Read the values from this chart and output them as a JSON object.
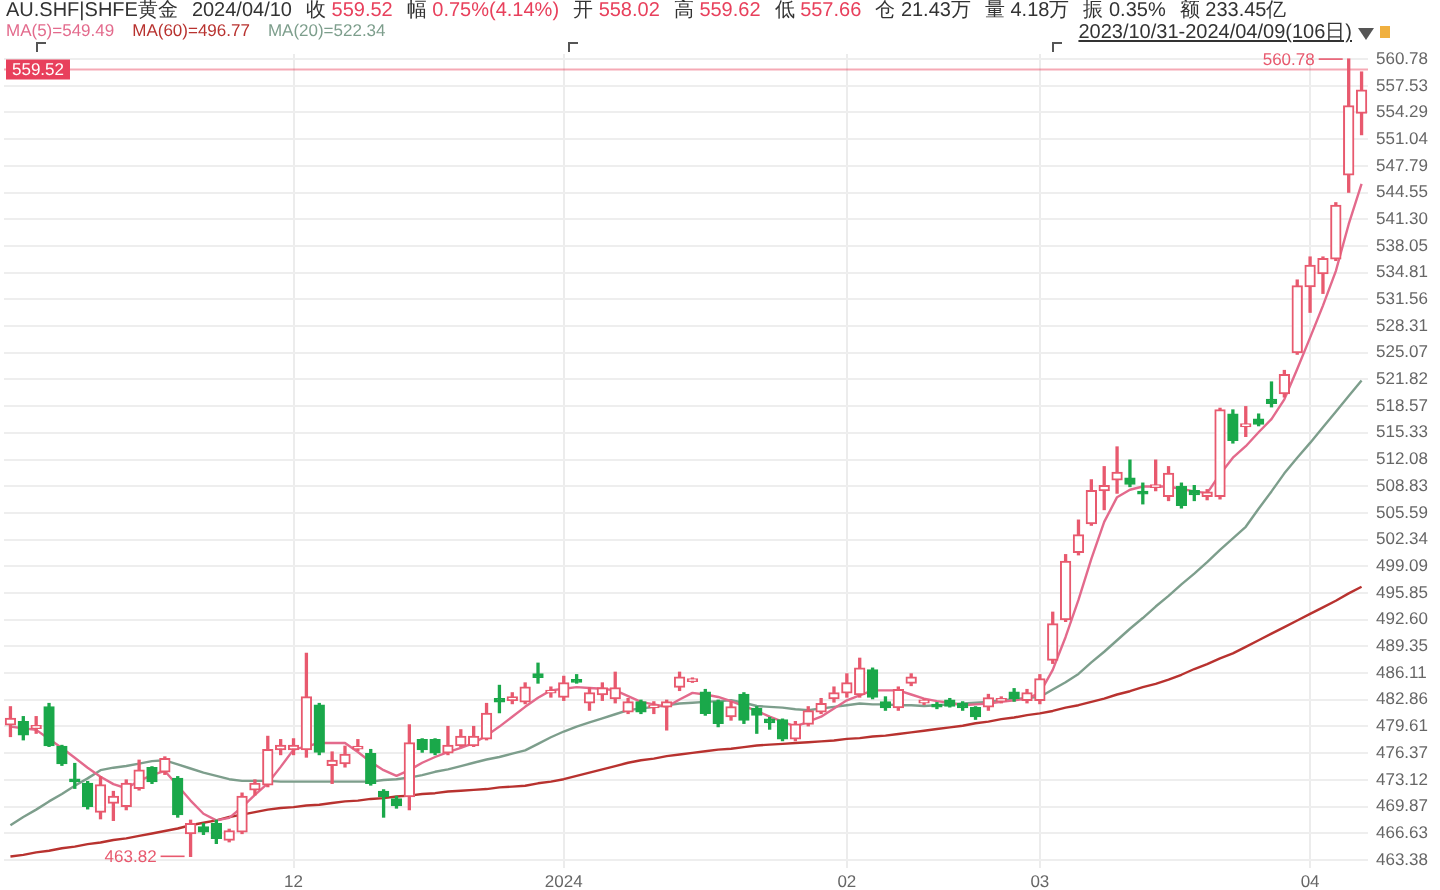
{
  "chart_data": {
    "type": "candlestick",
    "title": "AU.SHF|SHFE黄金",
    "subtitle": "2023/10/31-2024/04/09(106日)",
    "categories": [
      null,
      null,
      null,
      null,
      null,
      null,
      null,
      null,
      null,
      null,
      null,
      null,
      null,
      null,
      null,
      null,
      null,
      null,
      null,
      null,
      null,
      null,
      "12",
      null,
      null,
      null,
      null,
      null,
      null,
      null,
      null,
      null,
      null,
      null,
      null,
      null,
      null,
      null,
      null,
      null,
      null,
      null,
      null,
      "2024",
      null,
      null,
      null,
      null,
      null,
      null,
      null,
      null,
      null,
      null,
      null,
      null,
      null,
      null,
      null,
      null,
      null,
      null,
      null,
      null,
      null,
      "02",
      null,
      null,
      null,
      null,
      null,
      null,
      null,
      null,
      null,
      null,
      null,
      null,
      null,
      null,
      "03",
      null,
      null,
      null,
      null,
      null,
      null,
      null,
      null,
      null,
      null,
      null,
      null,
      null,
      null,
      null,
      null,
      null,
      null,
      null,
      null,
      "04",
      null,
      null,
      null,
      null
    ],
    "ohlc": [
      [
        479.8,
        482.0,
        478.4,
        480.6
      ],
      [
        480.2,
        480.8,
        478.0,
        478.6
      ],
      [
        479.4,
        480.8,
        478.8,
        479.7
      ],
      [
        482.0,
        482.4,
        477.2,
        477.3
      ],
      [
        477.2,
        477.3,
        474.9,
        475.1
      ],
      [
        473.2,
        475.1,
        472.1,
        472.9
      ],
      [
        472.7,
        472.9,
        469.6,
        469.9
      ],
      [
        469.2,
        473.5,
        468.4,
        472.5
      ],
      [
        470.3,
        471.7,
        468.2,
        471.1
      ],
      [
        469.9,
        473.1,
        469.5,
        472.7
      ],
      [
        472.1,
        475.5,
        471.9,
        474.3
      ],
      [
        474.6,
        474.7,
        472.7,
        472.9
      ],
      [
        474.1,
        475.9,
        473.8,
        475.7
      ],
      [
        473.3,
        473.5,
        468.6,
        468.9
      ],
      [
        466.6,
        468.2,
        463.82,
        467.8
      ],
      [
        467.4,
        467.8,
        466.5,
        466.8
      ],
      [
        467.8,
        468.2,
        465.4,
        466.0
      ],
      [
        465.8,
        467.1,
        465.6,
        466.9
      ],
      [
        466.8,
        471.5,
        466.6,
        471.1
      ],
      [
        471.9,
        473.1,
        471.3,
        472.7
      ],
      [
        472.5,
        478.4,
        472.3,
        476.8
      ],
      [
        476.8,
        478.0,
        476.2,
        477.3
      ],
      [
        476.8,
        478.1,
        476.2,
        477.3
      ],
      [
        476.8,
        488.5,
        475.9,
        483.2
      ],
      [
        482.2,
        482.4,
        476.2,
        476.5
      ],
      [
        474.9,
        476.5,
        472.7,
        475.5
      ],
      [
        475.1,
        477.2,
        474.7,
        476.2
      ],
      [
        476.9,
        478.0,
        476.7,
        477.2
      ],
      [
        476.3,
        476.8,
        472.5,
        472.7
      ],
      [
        471.7,
        471.9,
        468.6,
        471.1
      ],
      [
        470.8,
        471.1,
        469.7,
        470.0
      ],
      [
        471.1,
        479.8,
        469.5,
        477.6
      ],
      [
        478.0,
        478.1,
        476.5,
        476.8
      ],
      [
        478.0,
        478.1,
        476.2,
        476.4
      ],
      [
        476.4,
        479.6,
        476.2,
        477.3
      ],
      [
        477.3,
        479.2,
        477.2,
        478.4
      ],
      [
        477.3,
        479.6,
        477.2,
        478.4
      ],
      [
        478.1,
        482.4,
        478.0,
        481.2
      ],
      [
        483.0,
        484.6,
        481.3,
        482.6
      ],
      [
        482.8,
        483.7,
        482.4,
        483.2
      ],
      [
        482.6,
        484.9,
        482.4,
        484.4
      ],
      [
        486.0,
        487.3,
        484.9,
        485.6
      ],
      [
        483.7,
        484.4,
        483.2,
        484.0
      ],
      [
        483.2,
        485.7,
        482.8,
        484.9
      ],
      [
        485.3,
        485.9,
        484.9,
        485.0
      ],
      [
        482.5,
        484.3,
        481.6,
        483.7
      ],
      [
        483.5,
        484.9,
        482.8,
        484.3
      ],
      [
        483.0,
        486.2,
        482.5,
        484.3
      ],
      [
        481.4,
        483.0,
        481.2,
        482.6
      ],
      [
        482.6,
        482.8,
        481.2,
        481.4
      ],
      [
        481.9,
        482.6,
        481.2,
        482.2
      ],
      [
        482.0,
        482.8,
        479.2,
        482.6
      ],
      [
        484.4,
        486.2,
        484.0,
        485.6
      ],
      [
        485.1,
        485.5,
        485.0,
        485.4
      ],
      [
        483.8,
        484.1,
        481.0,
        481.2
      ],
      [
        482.6,
        482.8,
        479.6,
        480.0
      ],
      [
        480.8,
        482.6,
        480.4,
        482.0
      ],
      [
        483.5,
        483.7,
        480.0,
        480.4
      ],
      [
        481.8,
        482.0,
        478.8,
        481.0
      ],
      [
        480.5,
        480.7,
        479.3,
        480.1
      ],
      [
        480.4,
        480.5,
        477.9,
        478.1
      ],
      [
        478.1,
        480.2,
        477.9,
        479.9
      ],
      [
        479.9,
        482.0,
        479.7,
        481.5
      ],
      [
        481.4,
        483.0,
        481.2,
        482.4
      ],
      [
        483.0,
        484.4,
        482.6,
        483.7
      ],
      [
        483.7,
        486.0,
        483.2,
        484.9
      ],
      [
        483.5,
        487.9,
        483.2,
        486.7
      ],
      [
        486.5,
        486.7,
        483.0,
        483.2
      ],
      [
        482.6,
        483.2,
        481.6,
        481.9
      ],
      [
        481.9,
        484.4,
        481.6,
        484.1
      ],
      [
        484.9,
        486.0,
        484.6,
        485.6
      ],
      [
        482.5,
        482.9,
        482.3,
        482.8
      ],
      [
        482.3,
        482.5,
        481.8,
        482.0
      ],
      [
        482.8,
        483.0,
        482.0,
        482.1
      ],
      [
        482.4,
        482.6,
        481.6,
        481.9
      ],
      [
        481.9,
        482.0,
        480.5,
        480.8
      ],
      [
        482.0,
        483.5,
        481.6,
        483.1
      ],
      [
        482.7,
        483.2,
        482.5,
        483.0
      ],
      [
        483.8,
        484.2,
        482.7,
        483.0
      ],
      [
        482.8,
        484.1,
        482.5,
        483.7
      ],
      [
        482.8,
        485.9,
        482.4,
        485.4
      ],
      [
        487.7,
        493.5,
        487.3,
        492.1
      ],
      [
        492.6,
        500.5,
        492.4,
        499.7
      ],
      [
        500.8,
        504.7,
        500.5,
        502.9
      ],
      [
        504.3,
        509.6,
        504.1,
        508.3
      ],
      [
        508.3,
        511.2,
        506.0,
        508.9
      ],
      [
        509.6,
        513.6,
        508.0,
        510.5
      ],
      [
        509.8,
        512.0,
        508.8,
        509.1
      ],
      [
        508.2,
        509.2,
        506.7,
        507.9
      ],
      [
        508.7,
        512.0,
        508.3,
        509.0
      ],
      [
        507.6,
        511.2,
        507.1,
        510.4
      ],
      [
        508.8,
        509.2,
        506.2,
        506.5
      ],
      [
        508.3,
        508.9,
        507.1,
        507.8
      ],
      [
        507.6,
        508.4,
        507.2,
        508.1
      ],
      [
        507.6,
        518.3,
        507.3,
        518.1
      ],
      [
        517.6,
        518.1,
        514.1,
        514.4
      ],
      [
        516.1,
        518.5,
        514.9,
        516.4
      ],
      [
        517.0,
        517.6,
        516.2,
        516.4
      ],
      [
        519.4,
        521.5,
        518.5,
        518.9
      ],
      [
        520.1,
        522.9,
        519.7,
        522.4
      ],
      [
        525.1,
        533.9,
        524.9,
        533.2
      ],
      [
        533.1,
        536.7,
        530.0,
        535.7
      ],
      [
        534.7,
        536.7,
        532.3,
        536.5
      ],
      [
        536.5,
        543.3,
        536.3,
        543.0
      ],
      [
        546.7,
        560.78,
        544.6,
        555.1
      ],
      [
        554.2,
        559.2,
        551.6,
        557.0
      ]
    ],
    "colors": [
      "#e8596e",
      "#1aa84a",
      "#e8596e",
      "#1aa84a",
      "#1aa84a",
      "#1aa84a",
      "#1aa84a",
      "#e8596e",
      "#e8596e",
      "#e8596e",
      "#e8596e",
      "#1aa84a",
      "#e8596e",
      "#1aa84a",
      "#e8596e",
      "#1aa84a",
      "#1aa84a",
      "#e8596e",
      "#e8596e",
      "#e8596e",
      "#e8596e",
      "#e8596e",
      "#e8596e",
      "#e8596e",
      "#1aa84a",
      "#e8596e",
      "#e8596e",
      "#e8596e",
      "#1aa84a",
      "#1aa84a",
      "#1aa84a",
      "#e8596e",
      "#1aa84a",
      "#1aa84a",
      "#e8596e",
      "#e8596e",
      "#e8596e",
      "#e8596e",
      "#1aa84a",
      "#e8596e",
      "#e8596e",
      "#1aa84a",
      "#e8596e",
      "#e8596e",
      "#1aa84a",
      "#e8596e",
      "#e8596e",
      "#e8596e",
      "#e8596e",
      "#1aa84a",
      "#e8596e",
      "#e8596e",
      "#e8596e",
      "#e8596e",
      "#1aa84a",
      "#1aa84a",
      "#e8596e",
      "#1aa84a",
      "#1aa84a",
      "#1aa84a",
      "#1aa84a",
      "#e8596e",
      "#e8596e",
      "#e8596e",
      "#e8596e",
      "#e8596e",
      "#e8596e",
      "#1aa84a",
      "#1aa84a",
      "#e8596e",
      "#e8596e",
      "#e8596e",
      "#1aa84a",
      "#1aa84a",
      "#1aa84a",
      "#1aa84a",
      "#e8596e",
      "#e8596e",
      "#1aa84a",
      "#e8596e",
      "#e8596e",
      "#e8596e",
      "#e8596e",
      "#e8596e",
      "#e8596e",
      "#e8596e",
      "#e8596e",
      "#1aa84a",
      "#1aa84a",
      "#e8596e",
      "#e8596e",
      "#1aa84a",
      "#1aa84a",
      "#e8596e",
      "#e8596e",
      "#1aa84a",
      "#e8596e",
      "#1aa84a",
      "#1aa84a",
      "#e8596e",
      "#e8596e",
      "#e8596e",
      "#e8596e",
      "#e8596e",
      "#e8596e",
      "#e8596e"
    ],
    "series": [
      {
        "name": "MA(5)=549.49",
        "type": "line",
        "color": "#e36a8c",
        "values": [
          479.6,
          479.4,
          479.2,
          478.1,
          477.0,
          475.8,
          474.6,
          473.5,
          472.6,
          472.1,
          473.0,
          473.7,
          474.2,
          472.4,
          470.6,
          469.0,
          468.2,
          468.5,
          469.8,
          471.3,
          472.7,
          474.7,
          476.8,
          477.2,
          477.6,
          477.6,
          477.6,
          476.5,
          475.3,
          474.3,
          473.6,
          474.3,
          475.2,
          475.9,
          476.5,
          477.0,
          477.6,
          478.5,
          479.6,
          480.8,
          482.0,
          483.1,
          484.0,
          484.2,
          484.4,
          484.3,
          484.2,
          484.0,
          483.3,
          482.6,
          482.3,
          482.0,
          482.9,
          483.7,
          483.5,
          483.2,
          482.7,
          482.1,
          481.5,
          480.8,
          480.2,
          479.6,
          480.2,
          480.8,
          481.8,
          482.8,
          483.4,
          484.0,
          484.0,
          484.0,
          483.5,
          483.0,
          482.7,
          482.5,
          482.2,
          482.3,
          482.4,
          482.6,
          482.8,
          483.0,
          483.7,
          486.5,
          490.5,
          495.0,
          500.0,
          504.5,
          507.5,
          508.4,
          508.8,
          508.8,
          508.8,
          508.5,
          508.2,
          508.0,
          510.3,
          512.3,
          513.7,
          515.4,
          517.0,
          519.4,
          523.1,
          526.9,
          530.8,
          535.0,
          540.7,
          545.6
        ]
      },
      {
        "name": "MA(60)=496.77",
        "type": "line",
        "color": "#b8322f",
        "values": [
          463.8,
          464.0,
          464.3,
          464.5,
          464.8,
          465.0,
          465.3,
          465.5,
          465.8,
          466.0,
          466.3,
          466.6,
          466.9,
          467.2,
          467.6,
          467.9,
          468.2,
          468.6,
          468.9,
          469.2,
          469.5,
          469.7,
          469.8,
          470.0,
          470.1,
          470.3,
          470.5,
          470.6,
          470.8,
          470.9,
          471.1,
          471.2,
          471.4,
          471.5,
          471.7,
          471.8,
          471.9,
          472.0,
          472.2,
          472.3,
          472.4,
          472.7,
          472.9,
          473.2,
          473.6,
          474.0,
          474.4,
          474.8,
          475.2,
          475.5,
          475.7,
          476.0,
          476.2,
          476.4,
          476.6,
          476.8,
          476.9,
          477.1,
          477.3,
          477.4,
          477.5,
          477.6,
          477.7,
          477.8,
          477.9,
          478.1,
          478.2,
          478.4,
          478.5,
          478.7,
          478.9,
          479.1,
          479.3,
          479.5,
          479.7,
          480.0,
          480.2,
          480.5,
          480.7,
          481.0,
          481.2,
          481.5,
          481.9,
          482.2,
          482.6,
          483.0,
          483.5,
          483.9,
          484.4,
          484.8,
          485.3,
          485.9,
          486.6,
          487.2,
          487.9,
          488.5,
          489.3,
          490.1,
          490.9,
          491.7,
          492.5,
          493.3,
          494.1,
          494.9,
          495.8,
          496.6
        ]
      },
      {
        "name": "MA(20)=522.34",
        "type": "line",
        "color": "#7d9e8c",
        "values": [
          467.6,
          468.6,
          469.5,
          470.5,
          471.4,
          472.4,
          473.3,
          474.3,
          474.6,
          474.8,
          475.1,
          475.4,
          475.5,
          475.0,
          474.5,
          474.0,
          473.6,
          473.2,
          473.0,
          473.0,
          473.0,
          472.9,
          472.9,
          472.9,
          472.9,
          472.9,
          472.9,
          472.9,
          472.9,
          473.1,
          473.2,
          473.4,
          473.7,
          474.1,
          474.4,
          474.8,
          475.2,
          475.6,
          475.9,
          476.3,
          476.7,
          477.5,
          478.3,
          479.0,
          479.6,
          480.1,
          480.6,
          481.1,
          481.6,
          481.8,
          482.0,
          482.2,
          482.4,
          482.5,
          482.6,
          482.7,
          482.8,
          482.5,
          482.1,
          482.0,
          481.9,
          481.7,
          481.6,
          481.8,
          482.0,
          482.2,
          482.4,
          482.3,
          482.3,
          482.2,
          482.2,
          482.1,
          482.2,
          482.3,
          482.4,
          482.5,
          482.6,
          482.8,
          482.9,
          483.1,
          483.2,
          484.1,
          485.0,
          486.0,
          487.4,
          488.7,
          490.1,
          491.5,
          492.8,
          494.2,
          495.5,
          496.9,
          498.2,
          499.6,
          501.1,
          502.5,
          503.9,
          506.1,
          508.2,
          510.4,
          512.3,
          514.1,
          516.0,
          517.9,
          519.8,
          521.7
        ]
      }
    ],
    "ylim": [
      462.4,
      561.4
    ],
    "yticks": [
      463.38,
      466.63,
      469.87,
      473.12,
      476.37,
      479.61,
      482.86,
      486.11,
      489.35,
      {
        "value": 492.6,
        "label": "492.60"
      },
      495.85,
      499.09,
      502.34,
      505.59,
      508.83,
      512.08,
      515.33,
      518.57,
      521.82,
      525.07,
      528.31,
      531.56,
      534.81,
      538.05,
      {
        "value": 541.3,
        "label": "541.30"
      },
      544.55,
      547.79,
      551.04,
      554.29,
      557.53,
      560.78
    ],
    "grid": true,
    "legend": "top left",
    "marker": "none",
    "annotations": [
      "2024/04/10",
      "收 559.52",
      "幅 0.75%(4.14%)",
      "开 558.02",
      "高 559.62",
      "低 557.66",
      "仓 21.43万",
      "量 4.18万",
      "振 0.35%",
      "额 233.45亿",
      "560.78",
      "463.82"
    ],
    "ref_lines": [
      {
        "axis": "y",
        "value": 559.52,
        "label": "559.52",
        "color": "#e8405c"
      }
    ]
  }
}
